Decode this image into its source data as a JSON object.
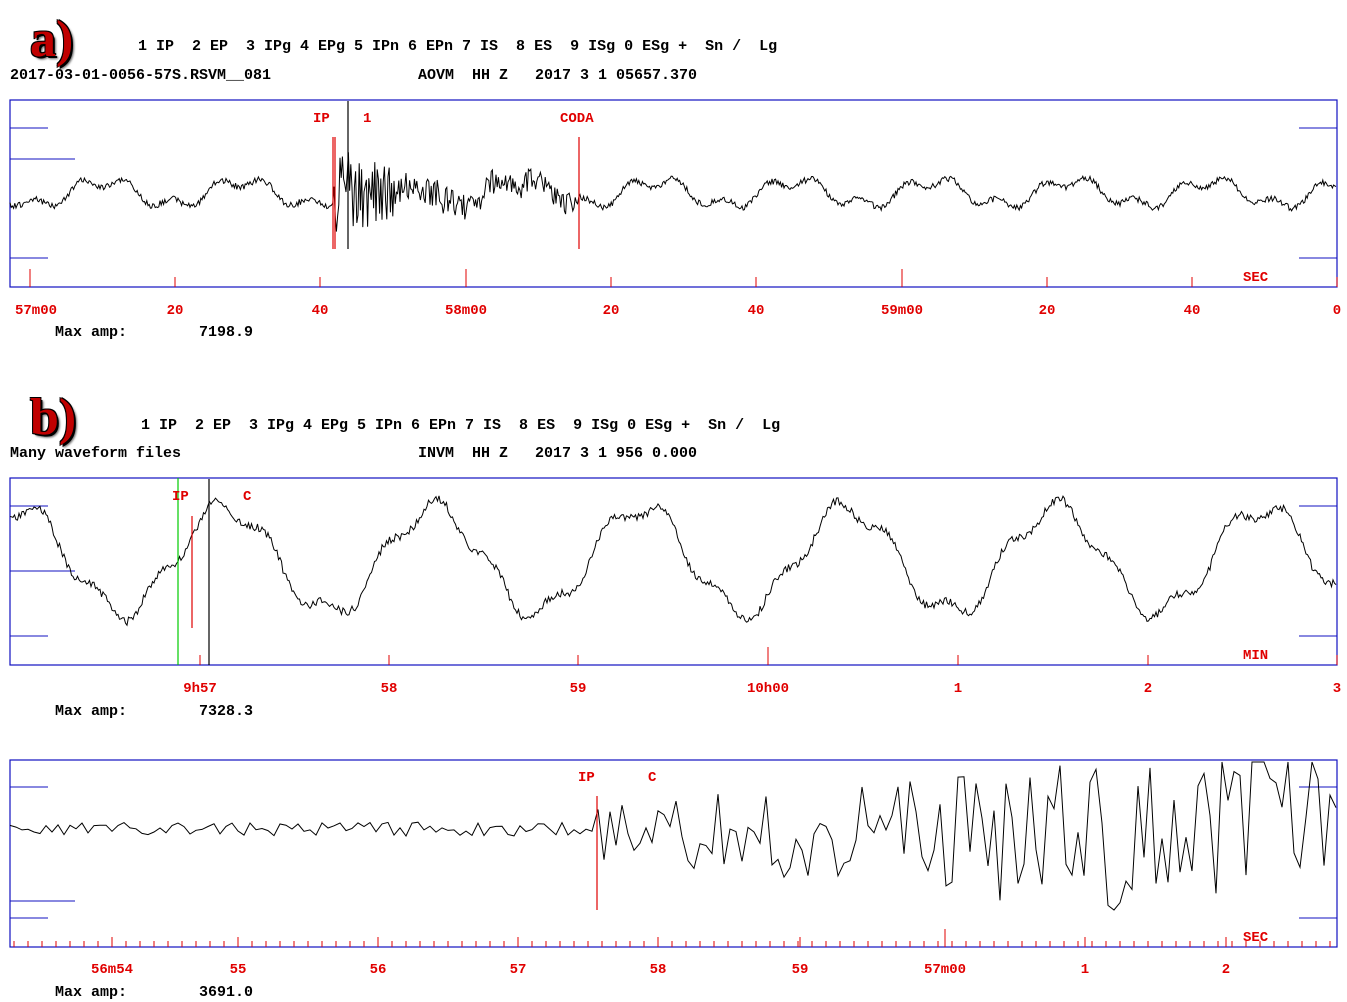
{
  "panels": [
    {
      "label": "a)",
      "phase_legend": "1 IP  2 EP  3 IPg 4 EPg 5 IPn 6 EPn 7 IS  8 ES  9 ISg 0 ESg +  Sn /  Lg",
      "file_name": "2017-03-01-0056-57S.RSVM__081",
      "station_info": "AOVM  HH Z   2017 3 1 05657.370",
      "max_amp_label": "Max amp:",
      "max_amp_value": "7198.9"
    },
    {
      "label": "b)",
      "phase_legend": "1 IP  2 EP  3 IPg 4 EPg 5 IPn 6 EPn 7 IS  8 ES  9 ISg 0 ESg +  Sn /  Lg",
      "file_name": "Many waveform files",
      "station_info": "INVM  HH Z   2017 3 1 956 0.000",
      "max_amp_label": "Max amp:",
      "max_amp_value": "7328.3"
    },
    {
      "label": "",
      "max_amp_label": "Max amp:",
      "max_amp_value": "3691.0"
    }
  ],
  "chart_data": [
    {
      "type": "line",
      "title": "AOVM HH Z",
      "x_unit_label": "SEC",
      "tick_labels": [
        "57m00",
        "20",
        "40",
        "58m00",
        "20",
        "40",
        "59m00",
        "20",
        "40",
        "0"
      ],
      "picks": [
        {
          "label": "IP"
        },
        {
          "label": "1"
        },
        {
          "label": "CODA"
        }
      ],
      "colors": {
        "frame": "#1010c0",
        "trace": "#000000",
        "pick": "#e00000",
        "text": "#e00000"
      }
    },
    {
      "type": "line",
      "title": "INVM HH Z",
      "x_unit_label": "MIN",
      "tick_labels": [
        "9h57",
        "58",
        "59",
        "10h00",
        "1",
        "2",
        "3"
      ],
      "picks": [
        {
          "label": "IP"
        },
        {
          "label": "C"
        }
      ],
      "colors": {
        "frame": "#1010c0",
        "trace": "#000000",
        "pick": "#e00000",
        "marker": "#00cc00",
        "text": "#e00000"
      }
    },
    {
      "type": "line",
      "x_unit_label": "SEC",
      "tick_labels": [
        "56m54",
        "55",
        "56",
        "57",
        "58",
        "59",
        "57m00",
        "1",
        "2"
      ],
      "picks": [
        {
          "label": "IP"
        },
        {
          "label": "C"
        }
      ],
      "colors": {
        "frame": "#1010c0",
        "trace": "#000000",
        "pick": "#e00000",
        "text": "#e00000"
      }
    }
  ]
}
